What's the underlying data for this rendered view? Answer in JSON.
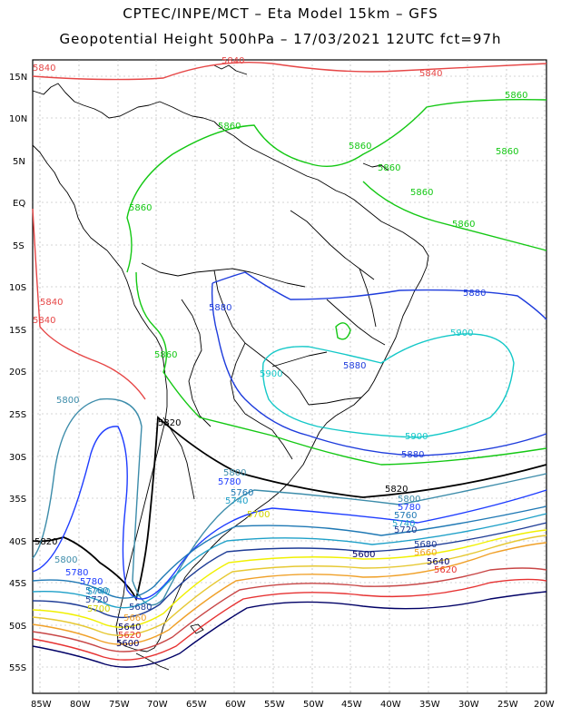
{
  "header": {
    "line1": "CPTEC/INPE/MCT  –   Eta Model 15km – GFS",
    "line2": "Geopotential Height 500hPa – 17/03/2021 12UTC fct=97h"
  },
  "axes": {
    "lat_labels": [
      "15N",
      "10N",
      "5N",
      "EQ",
      "5S",
      "10S",
      "15S",
      "20S",
      "25S",
      "30S",
      "35S",
      "40S",
      "45S",
      "50S",
      "55S"
    ],
    "lon_labels": [
      "85W",
      "80W",
      "75W",
      "70W",
      "65W",
      "60W",
      "55W",
      "50W",
      "45W",
      "40W",
      "35W",
      "30W",
      "25W",
      "20W"
    ]
  },
  "colors": {
    "c5600": "#000066",
    "c5620": "#e63232",
    "c5640": "#aa5a5a",
    "c5660": "#f0a028",
    "c5680": "#e6dc32",
    "c5700": "#f0f000",
    "c5720": "#1e3c96",
    "c5740": "#1e96c8",
    "c5760": "#1e78b4",
    "c5780": "#1e3cff",
    "c5800": "#3c8caa",
    "c5820": "#000000",
    "c5840": "#ff3232",
    "c5860": "#00c800",
    "c5880": "#1e3cdc",
    "c5900": "#00c8c8",
    "coast": "#000000",
    "grid": "#aaaaaa"
  },
  "contours": [
    {
      "value": "5840",
      "color": "#e64646"
    },
    {
      "value": "5860",
      "color": "#14c814"
    },
    {
      "value": "5880",
      "color": "#1e3cdc"
    },
    {
      "value": "5900",
      "color": "#14c8c8"
    },
    {
      "value": "5820",
      "color": "#000000"
    },
    {
      "value": "5800",
      "color": "#3c8caa"
    },
    {
      "value": "5780",
      "color": "#1e3cff"
    },
    {
      "value": "5760",
      "color": "#1e78b4"
    },
    {
      "value": "5740",
      "color": "#1ea0c8"
    },
    {
      "value": "5720",
      "color": "#1e3c96"
    },
    {
      "value": "5700",
      "color": "#f0f000"
    },
    {
      "value": "5680",
      "color": "#e6c832"
    },
    {
      "value": "5660",
      "color": "#f0a028"
    },
    {
      "value": "5640",
      "color": "#c84646"
    },
    {
      "value": "5620",
      "color": "#e63232"
    },
    {
      "value": "5600",
      "color": "#000066"
    }
  ],
  "contour_labels": {
    "l5840_a": "5840",
    "l5840_b": "5840",
    "l5840_c": "5840",
    "l5840_d": "5840",
    "l5840_e": "5840",
    "l5860_a": "5860",
    "l5860_b": "5860",
    "l5860_c": "5860",
    "l5860_d": "5860",
    "l5860_e": "5860",
    "l5860_f": "5860",
    "l5860_g": "5860",
    "l5860_h": "5860",
    "l5860_i": "5860",
    "l5880_a": "5880",
    "l5880_b": "5880",
    "l5880_c": "5880",
    "l5880_d": "5880",
    "l5900_a": "5900",
    "l5900_b": "5900",
    "l5900_c": "5900",
    "l5820_a": "5820",
    "l5820_b": "5820",
    "l5820_c": "5820",
    "l5800_a": "5800",
    "l5800_b": "5800",
    "l5800_c": "5800",
    "l5800_d": "5800",
    "l5780_a": "5780",
    "l5780_b": "5780",
    "l5780_c": "5780",
    "l5780_d": "5780",
    "l5760_a": "5760",
    "l5760_b": "5760",
    "l5760_c": "5760",
    "l5740_a": "5740",
    "l5740_b": "5740",
    "l5740_c": "5740",
    "l5720_a": "5720",
    "l5720_b": "5720",
    "l5700_a": "5700",
    "l5700_b": "5700",
    "l5680_a": "5680",
    "l5680_b": "5680",
    "l5660_a": "5660",
    "l5660_b": "5660",
    "l5640_a": "5640",
    "l5640_b": "5640",
    "l5620_a": "5620",
    "l5620_b": "5620",
    "l5600_a": "5600",
    "l5600_b": "5600"
  }
}
